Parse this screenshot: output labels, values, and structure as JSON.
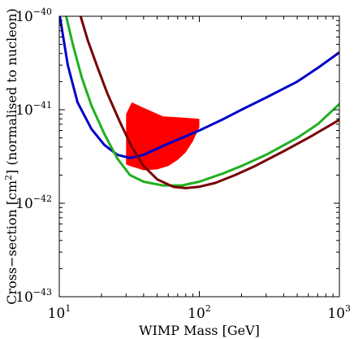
{
  "chart_data": {
    "type": "line",
    "xlabel": "WIMP Mass [GeV]",
    "ylabel": "Cross−section [cm2] (normalised to nucleon)",
    "ylabel_parts": {
      "before": "Cross−section [cm",
      "sup": "2",
      "after": "] (normalised to nucleon)"
    },
    "x_scale": "log",
    "y_scale": "log",
    "xlim": [
      10,
      1000
    ],
    "ylim": [
      1e-43,
      1e-40
    ],
    "grid": false,
    "x_ticks": [
      {
        "value": 10,
        "base": "10",
        "exp": "1"
      },
      {
        "value": 100,
        "base": "10",
        "exp": "2"
      },
      {
        "value": 1000,
        "base": "10",
        "exp": "3"
      }
    ],
    "y_ticks": [
      {
        "value": 1e-43,
        "base": "10",
        "exp": "−43"
      },
      {
        "value": 1e-42,
        "base": "10",
        "exp": "−42"
      },
      {
        "value": 1e-41,
        "base": "10",
        "exp": "−41"
      },
      {
        "value": 1e-40,
        "base": "10",
        "exp": "−40"
      }
    ],
    "series": [
      {
        "color": "#0000c8",
        "points": [
          [
            10.1,
            1e-40
          ],
          [
            11.5,
            3e-41
          ],
          [
            13.5,
            1.2e-41
          ],
          [
            17,
            6.2e-42
          ],
          [
            21,
            4.2e-42
          ],
          [
            26,
            3.3e-42
          ],
          [
            32,
            3.05e-42
          ],
          [
            40,
            3.3e-42
          ],
          [
            55,
            4.1e-42
          ],
          [
            75,
            5e-42
          ],
          [
            100,
            6e-42
          ],
          [
            150,
            8e-42
          ],
          [
            200,
            1e-41
          ],
          [
            300,
            1.35e-41
          ],
          [
            500,
            2e-41
          ],
          [
            700,
            2.8e-41
          ],
          [
            1000,
            4.1e-41
          ]
        ]
      },
      {
        "color": "#20b020",
        "points": [
          [
            11.2,
            1e-40
          ],
          [
            12.5,
            5e-41
          ],
          [
            14.5,
            2.2e-41
          ],
          [
            17,
            1.1e-41
          ],
          [
            21,
            5.5e-42
          ],
          [
            26,
            3e-42
          ],
          [
            32,
            2e-42
          ],
          [
            40,
            1.7e-42
          ],
          [
            55,
            1.55e-42
          ],
          [
            75,
            1.55e-42
          ],
          [
            100,
            1.7e-42
          ],
          [
            150,
            2.1e-42
          ],
          [
            200,
            2.5e-42
          ],
          [
            300,
            3.3e-42
          ],
          [
            500,
            5e-42
          ],
          [
            700,
            7e-42
          ],
          [
            1000,
            1.15e-41
          ]
        ]
      },
      {
        "color": "#780000",
        "points": [
          [
            14.2,
            1e-40
          ],
          [
            16,
            5.5e-41
          ],
          [
            18.5,
            3e-41
          ],
          [
            22,
            1.5e-41
          ],
          [
            27,
            7.5e-42
          ],
          [
            33,
            4e-42
          ],
          [
            40,
            2.5e-42
          ],
          [
            50,
            1.8e-42
          ],
          [
            65,
            1.5e-42
          ],
          [
            80,
            1.45e-42
          ],
          [
            100,
            1.5e-42
          ],
          [
            130,
            1.65e-42
          ],
          [
            180,
            2e-42
          ],
          [
            250,
            2.5e-42
          ],
          [
            400,
            3.6e-42
          ],
          [
            600,
            5e-42
          ],
          [
            1000,
            7.8e-42
          ]
        ]
      }
    ],
    "region": {
      "color": "#ff0000",
      "points": [
        [
          30,
          9e-42
        ],
        [
          33,
          1.2e-41
        ],
        [
          40,
          1.05e-41
        ],
        [
          55,
          8.5e-42
        ],
        [
          80,
          8.2e-42
        ],
        [
          100,
          8e-42
        ],
        [
          100,
          6.5e-42
        ],
        [
          90,
          4.6e-42
        ],
        [
          80,
          3.5e-42
        ],
        [
          70,
          2.9e-42
        ],
        [
          60,
          2.5e-42
        ],
        [
          50,
          2.3e-42
        ],
        [
          40,
          2.25e-42
        ],
        [
          35,
          2.4e-42
        ],
        [
          32,
          2.5e-42
        ],
        [
          30,
          2.6e-42
        ]
      ]
    }
  }
}
